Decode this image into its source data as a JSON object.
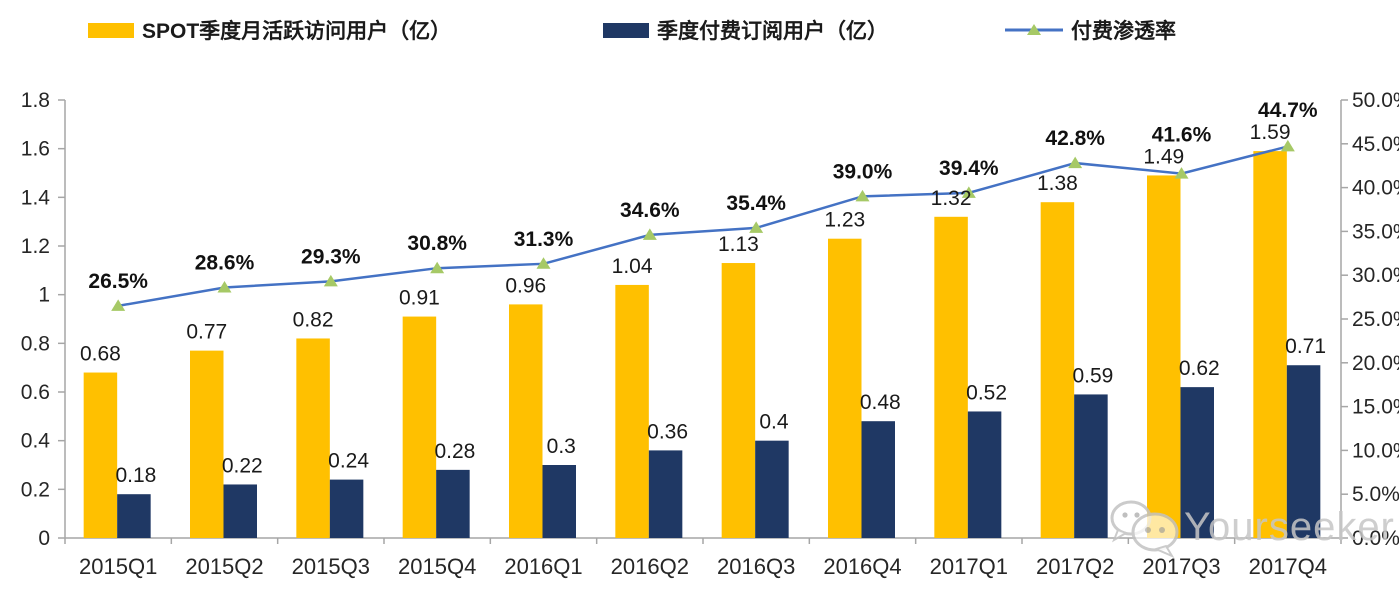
{
  "chart_data": {
    "type": "combo-bar-line",
    "categories": [
      "2015Q1",
      "2015Q2",
      "2015Q3",
      "2015Q4",
      "2016Q1",
      "2016Q2",
      "2016Q3",
      "2016Q4",
      "2017Q1",
      "2017Q2",
      "2017Q3",
      "2017Q4"
    ],
    "series": [
      {
        "name": "SPOT季度月活跃访问用户（亿）",
        "type": "bar",
        "axis": "left",
        "color": "#FFC000",
        "values": [
          0.68,
          0.77,
          0.82,
          0.91,
          0.96,
          1.04,
          1.13,
          1.23,
          1.32,
          1.38,
          1.49,
          1.59
        ],
        "labels": [
          "0.68",
          "0.77",
          "0.82",
          "0.91",
          "0.96",
          "1.04",
          "1.13",
          "1.23",
          "1.32",
          "1.38",
          "1.49",
          "1.59"
        ]
      },
      {
        "name": "季度付费订阅用户（亿）",
        "type": "bar",
        "axis": "left",
        "color": "#1F3864",
        "values": [
          0.18,
          0.22,
          0.24,
          0.28,
          0.3,
          0.36,
          0.4,
          0.48,
          0.52,
          0.59,
          0.62,
          0.71
        ],
        "labels": [
          "0.18",
          "0.22",
          "0.24",
          "0.28",
          "0.3",
          "0.36",
          "0.4",
          "0.48",
          "0.52",
          "0.59",
          "0.62",
          "0.71"
        ]
      },
      {
        "name": "付费渗透率",
        "type": "line",
        "axis": "right",
        "color": "#4472C4",
        "marker": "triangle",
        "marker_color": "#A6C966",
        "values": [
          26.5,
          28.6,
          29.3,
          30.8,
          31.3,
          34.6,
          35.4,
          39.0,
          39.4,
          42.8,
          41.6,
          44.7
        ],
        "labels": [
          "26.5%",
          "28.6%",
          "29.3%",
          "30.8%",
          "31.3%",
          "34.6%",
          "35.4%",
          "39.0%",
          "39.4%",
          "42.8%",
          "41.6%",
          "44.7%"
        ]
      }
    ],
    "left_axis": {
      "min": 0,
      "max": 1.8,
      "ticks": [
        "0",
        "0.2",
        "0.4",
        "0.6",
        "0.8",
        "1",
        "1.2",
        "1.4",
        "1.6",
        "1.8"
      ]
    },
    "right_axis": {
      "min": 0,
      "max": 50,
      "ticks": [
        "0.0%",
        "5.0%",
        "10.0%",
        "15.0%",
        "20.0%",
        "25.0%",
        "30.0%",
        "35.0%",
        "40.0%",
        "45.0%",
        "50.0%"
      ]
    },
    "grid": false,
    "legend_position": "top",
    "axis_color": "#a6a6a6"
  },
  "watermark": {
    "text": "Yourseeker",
    "icon": "wechat-icon"
  }
}
